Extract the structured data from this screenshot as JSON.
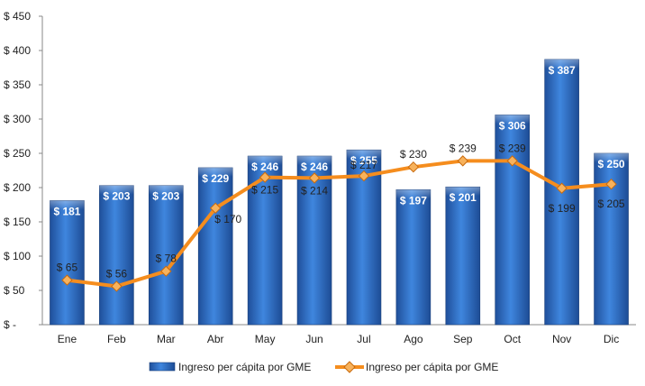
{
  "chart_data": {
    "type": "bar",
    "categories": [
      "Ene",
      "Feb",
      "Mar",
      "Abr",
      "May",
      "Jun",
      "Jul",
      "Ago",
      "Sep",
      "Oct",
      "Nov",
      "Dic"
    ],
    "series": [
      {
        "name": "Ingreso per cápita por GME",
        "type": "bar",
        "values": [
          181,
          203,
          203,
          229,
          246,
          246,
          255,
          197,
          201,
          306,
          387,
          250
        ],
        "labels": [
          "$ 181",
          "$ 203",
          "$ 203",
          "$ 229",
          "$ 246",
          "$ 246",
          "$ 255",
          "$ 197",
          "$ 201",
          "$ 306",
          "$ 387",
          "$ 250"
        ],
        "color": "#2e6fc4"
      },
      {
        "name": "Ingreso per cápita por GME",
        "type": "line",
        "values": [
          65,
          56,
          78,
          170,
          215,
          214,
          217,
          230,
          239,
          239,
          199,
          205
        ],
        "labels": [
          "$ 65",
          "$ 56",
          "$ 78",
          "$ 170",
          "$ 215",
          "$ 214",
          "$ 217",
          "$ 230",
          "$ 239",
          "$ 239",
          "$ 199",
          "$ 205"
        ],
        "color": "#f58d1e"
      }
    ],
    "ylim": [
      0,
      450
    ],
    "yticks": [
      0,
      50,
      100,
      150,
      200,
      250,
      300,
      350,
      400,
      450
    ],
    "ytick_labels": [
      "$ -",
      "$ 50",
      "$ 100",
      "$ 150",
      "$ 200",
      "$ 250",
      "$ 300",
      "$ 350",
      "$ 400",
      "$ 450"
    ],
    "grid": false,
    "legend_position": "bottom"
  }
}
